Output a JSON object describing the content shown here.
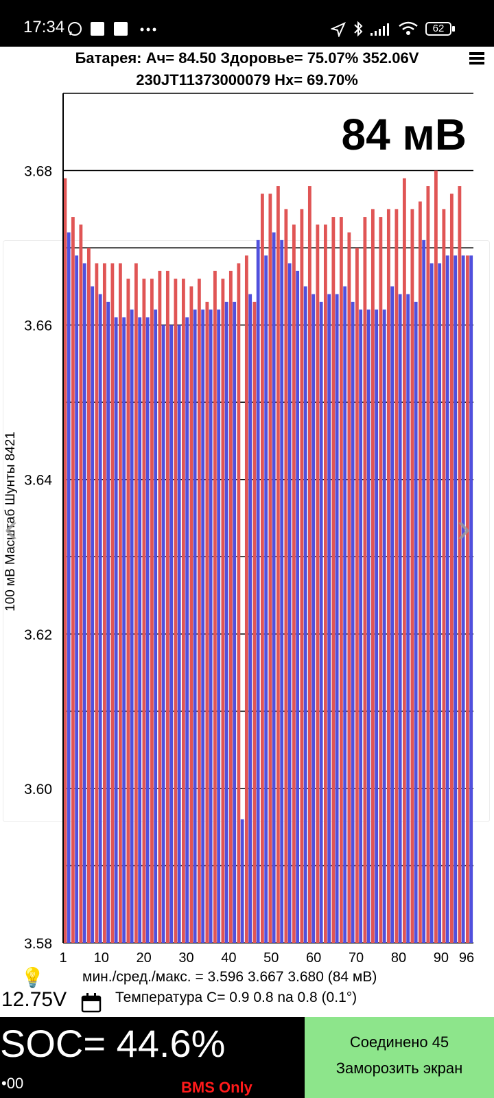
{
  "status_bar": {
    "time": "17:34",
    "icons": [
      "whatsapp-icon",
      "square-icon",
      "square-icon",
      "more-dots-icon",
      "location-arrow-icon",
      "bluetooth-icon",
      "signal-icon",
      "wifi-icon"
    ],
    "battery_level": "62"
  },
  "header": {
    "line1": "Батарея:  Ач= 84.50  Здоровье= 75.07%   352.06V",
    "line2": "230JT11373000079   Hx= 69.70%",
    "menu_icon": "hamburger-menu-icon"
  },
  "chart_data": {
    "type": "bar",
    "delta_label": "84 мВ",
    "ylabel": "100 мВ Масштаб  Шунты 8421",
    "ylim": [
      3.58,
      3.69
    ],
    "yticks": [
      3.58,
      3.6,
      3.62,
      3.64,
      3.66,
      3.68
    ],
    "ytick_labels": [
      "3.58",
      "3.60",
      "3.62",
      "3.64",
      "3.66",
      "3.68"
    ],
    "xticks": [
      1,
      10,
      20,
      30,
      40,
      50,
      60,
      70,
      80,
      90,
      96
    ],
    "xtick_labels": [
      "1",
      "10",
      "20",
      "30",
      "40",
      "50",
      "60",
      "70",
      "80",
      "90",
      "96"
    ],
    "series_colors": [
      "#e05555",
      "#5050dd"
    ],
    "red_values": [
      3.679,
      3.674,
      3.673,
      3.67,
      3.668,
      3.668,
      3.668,
      3.668,
      3.666,
      3.668,
      3.666,
      3.666,
      3.667,
      3.667,
      3.666,
      3.666,
      3.665,
      3.666,
      3.663,
      3.667,
      3.666,
      3.667,
      3.668,
      3.669,
      3.663,
      3.677,
      3.677,
      3.678,
      3.675,
      3.673,
      3.675,
      3.678,
      3.673,
      3.673,
      3.674,
      3.674,
      3.672,
      3.67,
      3.674,
      3.675,
      3.674,
      3.675,
      3.675,
      3.679,
      3.675,
      3.676,
      3.678,
      3.68,
      3.675,
      3.677,
      3.678,
      3.669
    ],
    "blue_values": [
      3.672,
      3.669,
      3.668,
      3.665,
      3.664,
      3.663,
      3.661,
      3.661,
      3.662,
      3.661,
      3.661,
      3.662,
      3.66,
      3.66,
      3.66,
      3.661,
      3.662,
      3.662,
      3.662,
      3.662,
      3.663,
      3.663,
      3.596,
      3.664,
      3.671,
      3.669,
      3.672,
      3.671,
      3.668,
      3.667,
      3.665,
      3.664,
      3.663,
      3.664,
      3.664,
      3.665,
      3.663,
      3.662,
      3.662,
      3.662,
      3.662,
      3.665,
      3.664,
      3.664,
      3.663,
      3.671,
      3.668,
      3.668,
      3.669,
      3.669,
      3.669,
      3.669
    ]
  },
  "stats": {
    "minmax": "мин./сред./макс. = 3.596 3.667 3.680  (84 мВ)",
    "bulb_icon": "light-bulb-icon",
    "pack_voltage": "12.75V",
    "calendar_icon": "calendar-icon",
    "temperatures": "Температура С= 0.9  0.8  na  0.8  (0.1°)"
  },
  "bottom": {
    "soc": "SOC= 44.6%",
    "soc_small": "•00",
    "bms_only": "BMS Only",
    "connect_line1": "Соединено 45",
    "connect_line2": "Заморозить экран"
  }
}
